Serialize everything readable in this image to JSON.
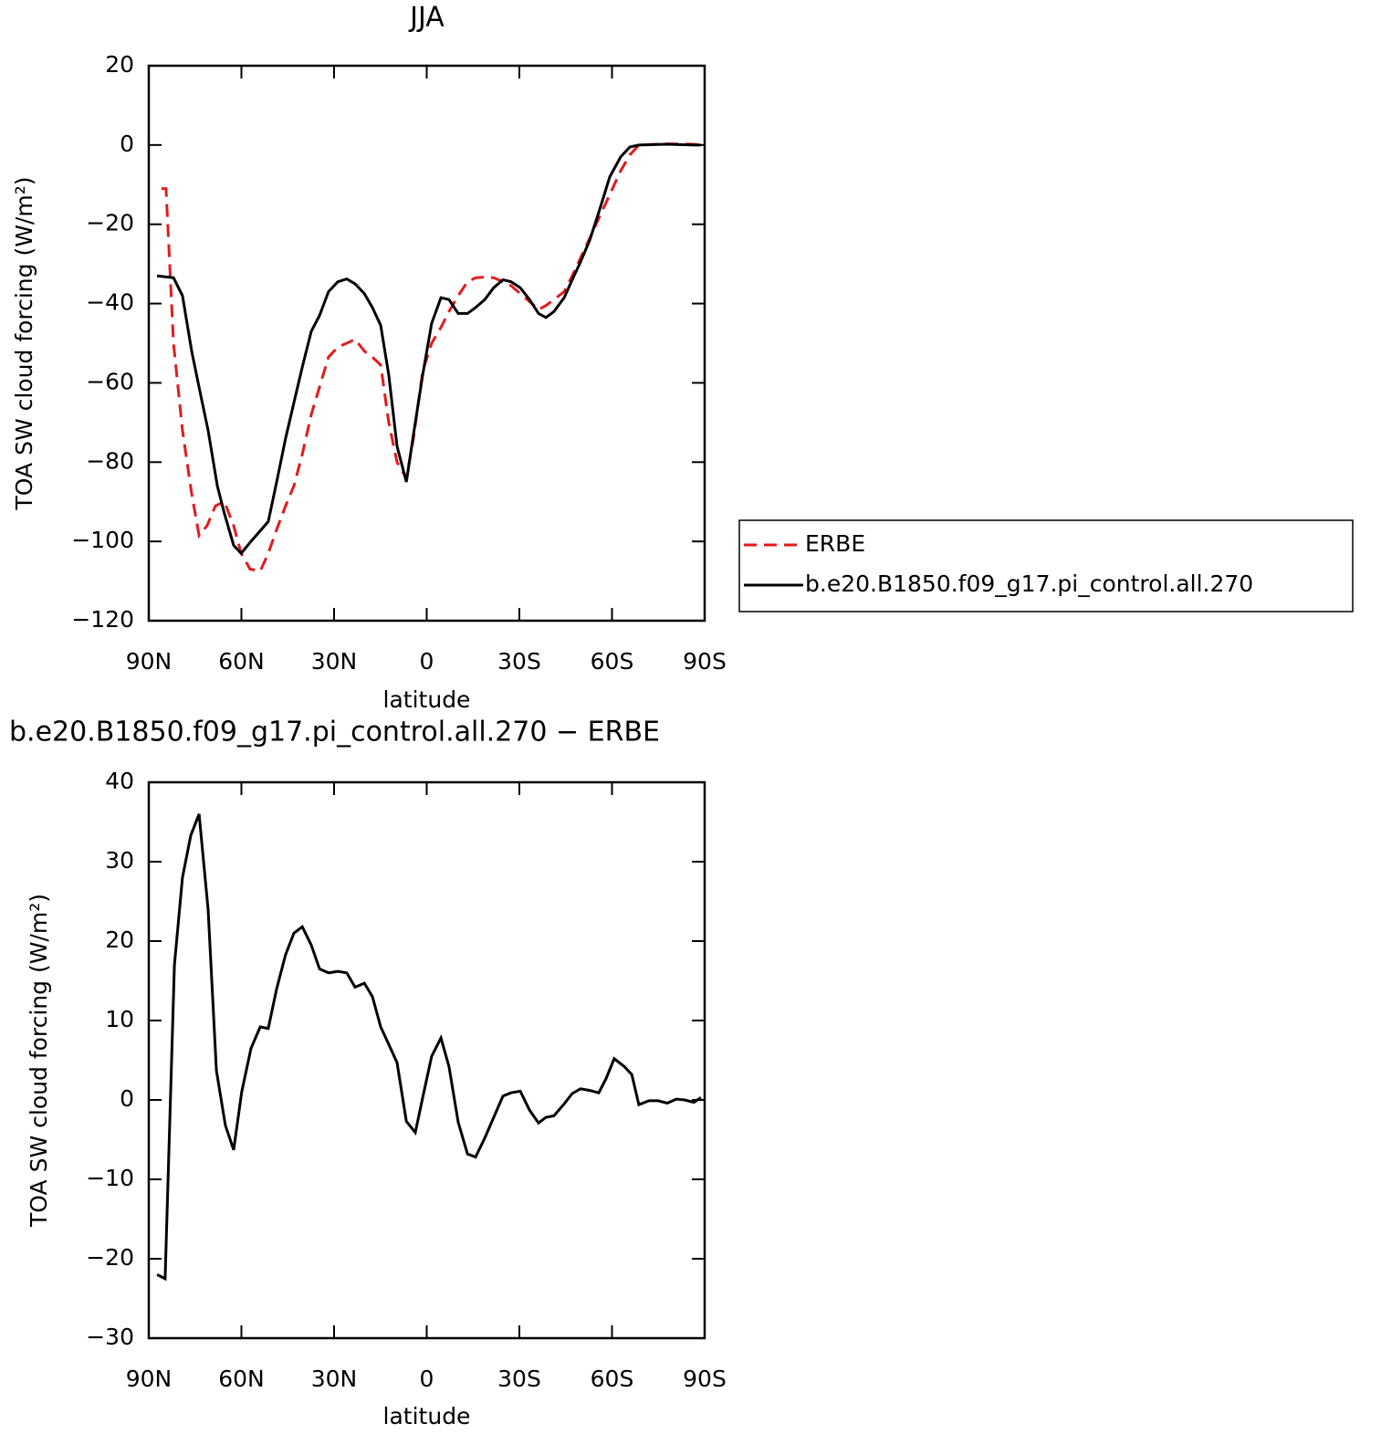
{
  "chart_data": [
    {
      "type": "line",
      "title": "JJA",
      "xlabel": "latitude",
      "ylabel": "TOA SW cloud forcing (W/m²)",
      "xlim": [
        90,
        -90
      ],
      "xticks": [
        {
          "value": 90,
          "label": "90N"
        },
        {
          "value": 60,
          "label": "60N"
        },
        {
          "value": 30,
          "label": "30N"
        },
        0,
        {
          "value": -30,
          "label": "30S"
        },
        {
          "value": -60,
          "label": "60S"
        },
        {
          "value": -90,
          "label": "90S"
        }
      ],
      "ylim": [
        -120,
        20
      ],
      "yticks": [
        {
          "value": -120,
          "label": "−120"
        },
        {
          "value": -100,
          "label": "−100"
        },
        {
          "value": -80,
          "label": "−80"
        },
        {
          "value": -60,
          "label": "−60"
        },
        {
          "value": -40,
          "label": "−40"
        },
        {
          "value": -20,
          "label": "−20"
        },
        0,
        20
      ],
      "legend": "right",
      "series": [
        {
          "name": "ERBE",
          "color": "#e41a1c",
          "dashed": true,
          "x": [
            85.9,
            84.4,
            82.0,
            79.1,
            76.1,
            73.7,
            71.1,
            68.4,
            65.5,
            62.5,
            60.1,
            57.2,
            53.9,
            51.3,
            48.6,
            45.7,
            43.0,
            40.3,
            37.4,
            34.7,
            31.8,
            28.8,
            25.9,
            23.2,
            20.2,
            17.6,
            14.9,
            12.3,
            9.6,
            6.6,
            4.3,
            1.3,
            -1.6,
            -4.6,
            -7.2,
            -10.2,
            -13.2,
            -15.8,
            -18.8,
            -21.7,
            -24.7,
            -27.3,
            -30.3,
            -33.3,
            -36.2,
            -38.6,
            -41.2,
            -44.5,
            -47.1,
            -49.8,
            -52.8,
            -55.7,
            -59.3,
            -62.8,
            -65.8,
            -68.7,
            -77.6,
            -86.5,
            -88.8
          ],
          "values": [
            -11,
            -11,
            -50,
            -72,
            -88,
            -98.5,
            -96,
            -91,
            -90,
            -96,
            -103,
            -107,
            -107.5,
            -103,
            -97,
            -91,
            -86,
            -78,
            -68,
            -61,
            -53.5,
            -51,
            -50,
            -49,
            -52,
            -53.5,
            -55.5,
            -70,
            -80,
            -84,
            -74,
            -57,
            -50,
            -46,
            -42,
            -38,
            -34.5,
            -33.5,
            -33.3,
            -33.5,
            -34.5,
            -35.5,
            -37.5,
            -39.5,
            -41.5,
            -40.5,
            -39,
            -37,
            -33,
            -28.5,
            -23.5,
            -18.5,
            -12.5,
            -6.5,
            -2.5,
            0,
            0.3,
            0.2,
            0
          ]
        },
        {
          "name": "b.e20.B1850.f09_g17.pi_control.all.270",
          "color": "#000000",
          "dashed": false,
          "x": [
            87.3,
            82.0,
            79.1,
            76.1,
            73.2,
            70.8,
            67.8,
            65.5,
            62.5,
            60.1,
            56.9,
            51.3,
            48.6,
            45.7,
            43.0,
            40.3,
            37.4,
            34.7,
            31.8,
            28.8,
            25.9,
            23.2,
            20.2,
            17.6,
            14.9,
            12.3,
            9.6,
            6.6,
            4.3,
            1.3,
            -1.6,
            -4.6,
            -7.2,
            -10.2,
            -13.2,
            -15.8,
            -18.8,
            -21.7,
            -24.7,
            -27.3,
            -30.3,
            -33.3,
            -36.2,
            -38.6,
            -41.2,
            -44.5,
            -47.1,
            -49.8,
            -52.8,
            -55.7,
            -59.3,
            -62.8,
            -65.8,
            -68.7,
            -77.6,
            -86.5,
            -88.8
          ],
          "values": [
            -33,
            -33.5,
            -38,
            -52,
            -63,
            -72,
            -86,
            -93,
            -101,
            -103,
            -100,
            -95,
            -85,
            -74,
            -65,
            -56,
            -47,
            -43,
            -37,
            -34.5,
            -33.8,
            -35,
            -37.5,
            -41,
            -45.5,
            -58,
            -76,
            -85,
            -73,
            -58,
            -45,
            -38.5,
            -39,
            -42.5,
            -42.5,
            -41,
            -39,
            -36,
            -34,
            -34.5,
            -36,
            -39,
            -42.5,
            -43.5,
            -42,
            -38.5,
            -34,
            -29.5,
            -24,
            -17,
            -8,
            -3,
            -0.5,
            0,
            0.2,
            0,
            0
          ]
        }
      ]
    },
    {
      "type": "line",
      "title": "b.e20.B1850.f09_g17.pi_control.all.270 − ERBE",
      "xlabel": "latitude",
      "ylabel": "TOA SW cloud forcing (W/m²)",
      "xlim": [
        90,
        -90
      ],
      "xticks": [
        {
          "value": 90,
          "label": "90N"
        },
        {
          "value": 60,
          "label": "60N"
        },
        {
          "value": 30,
          "label": "30N"
        },
        0,
        {
          "value": -30,
          "label": "30S"
        },
        {
          "value": -60,
          "label": "60S"
        },
        {
          "value": -90,
          "label": "90S"
        }
      ],
      "ylim": [
        -30,
        40
      ],
      "yticks": [
        {
          "value": -30,
          "label": "−30"
        },
        {
          "value": -20,
          "label": "−20"
        },
        {
          "value": -10,
          "label": "−10"
        },
        0,
        10,
        20,
        30,
        40
      ],
      "series": [
        {
          "color": "#000000",
          "dashed": false,
          "x": [
            87.3,
            84.7,
            81.7,
            79.1,
            76.4,
            73.7,
            70.8,
            68.1,
            65.2,
            62.5,
            59.9,
            56.9,
            53.9,
            51.3,
            48.6,
            45.7,
            43.0,
            40.3,
            37.4,
            34.7,
            31.8,
            28.8,
            25.9,
            23.2,
            20.2,
            17.6,
            14.9,
            12.3,
            9.6,
            6.6,
            3.7,
            1.3,
            -1.6,
            -4.6,
            -7.2,
            -10.2,
            -13.2,
            -15.8,
            -18.8,
            -21.7,
            -24.7,
            -27.3,
            -30.3,
            -33.3,
            -36.2,
            -38.6,
            -41.2,
            -44.5,
            -47.1,
            -49.8,
            -52.8,
            -55.7,
            -58.1,
            -60.7,
            -64.0,
            -66.4,
            -68.7,
            -72.0,
            -74.9,
            -77.9,
            -80.8,
            -83.5,
            -86.5,
            -88.8
          ],
          "values": [
            -22,
            -22.5,
            17,
            28,
            33.3,
            36,
            24,
            3.7,
            -3.2,
            -6.3,
            1,
            6.5,
            9.2,
            9,
            14,
            18.3,
            21,
            21.8,
            19.5,
            16.5,
            16,
            16.2,
            16,
            14.2,
            14.7,
            13,
            9.2,
            7,
            4.7,
            -2.7,
            -4.1,
            0.3,
            5.5,
            7.8,
            4.2,
            -2.8,
            -6.8,
            -7.2,
            -4.8,
            -2.2,
            0.5,
            0.9,
            1.1,
            -1.3,
            -2.9,
            -2.2,
            -2,
            -0.5,
            0.8,
            1.4,
            1.2,
            0.9,
            2.7,
            5.2,
            4.2,
            3.2,
            -0.6,
            -0.1,
            -0.1,
            -0.4,
            0.1,
            0,
            -0.3,
            0.3
          ]
        }
      ]
    }
  ]
}
